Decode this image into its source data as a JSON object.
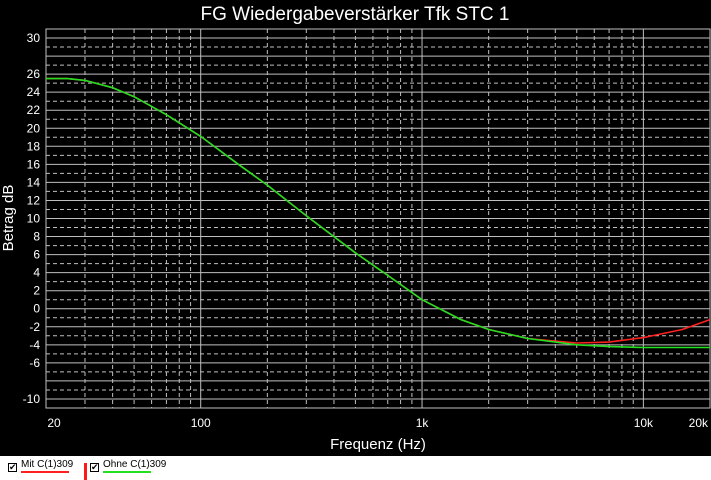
{
  "chart_data": {
    "type": "line",
    "title": "FG Wiedergabeverstärker Tfk STC 1",
    "xlabel": "Frequenz (Hz)",
    "ylabel": "Betrag dB",
    "xscale": "log",
    "xlim": [
      20,
      20000
    ],
    "ylim": [
      -11,
      31
    ],
    "x_ticks": [
      {
        "value": 20,
        "label": "20"
      },
      {
        "value": 100,
        "label": "100"
      },
      {
        "value": 1000,
        "label": "1k"
      },
      {
        "value": 10000,
        "label": "10k"
      },
      {
        "value": 20000,
        "label": "20k"
      }
    ],
    "y_ticks": [
      30,
      26,
      24,
      22,
      20,
      18,
      16,
      14,
      12,
      10,
      8,
      6,
      4,
      2,
      0,
      -2,
      -4,
      -6,
      -10
    ],
    "grid": true,
    "series": [
      {
        "name": "Mit C(1)309",
        "color": "#ff2020",
        "x": [
          20,
          25,
          30,
          40,
          50,
          70,
          100,
          150,
          200,
          300,
          500,
          700,
          1000,
          1500,
          2000,
          3000,
          5000,
          7000,
          10000,
          15000,
          20000
        ],
        "y": [
          25.5,
          25.5,
          25.3,
          24.5,
          23.5,
          21.5,
          19.1,
          15.9,
          13.7,
          10.3,
          6.2,
          3.7,
          1.0,
          -1.2,
          -2.3,
          -3.3,
          -3.8,
          -3.7,
          -3.2,
          -2.3,
          -1.2
        ]
      },
      {
        "name": "Ohne C(1)309",
        "color": "#20e020",
        "x": [
          20,
          25,
          30,
          40,
          50,
          70,
          100,
          150,
          200,
          300,
          500,
          700,
          1000,
          1500,
          2000,
          3000,
          5000,
          7000,
          10000,
          15000,
          20000
        ],
        "y": [
          25.5,
          25.5,
          25.3,
          24.5,
          23.5,
          21.5,
          19.1,
          15.9,
          13.7,
          10.3,
          6.2,
          3.7,
          1.0,
          -1.2,
          -2.3,
          -3.3,
          -4.0,
          -4.2,
          -4.3,
          -4.3,
          -4.3
        ]
      }
    ],
    "legend_position": "bottom-left"
  },
  "colors": {
    "background": "#000000",
    "grid": "#bfbfbf",
    "text": "#ffffff",
    "legend_background": "#ffffff"
  },
  "legend": {
    "items": [
      {
        "label": "Mit C(1)309",
        "checked": true,
        "color": "#ff2020"
      },
      {
        "label": "Ohne C(1)309",
        "checked": true,
        "color": "#20e020"
      }
    ]
  }
}
